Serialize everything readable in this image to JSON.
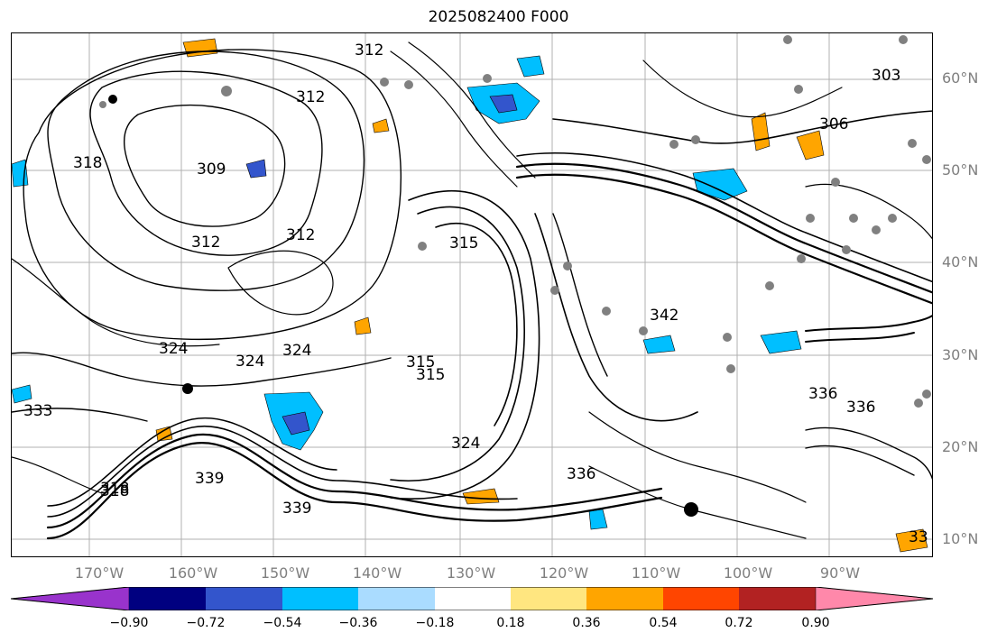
{
  "title": "2025082400 F000",
  "latitude_labels": [
    "60°N",
    "50°N",
    "40°N",
    "30°N",
    "20°N",
    "10°N"
  ],
  "longitude_labels": [
    "170°W",
    "160°W",
    "150°W",
    "140°W",
    "130°W",
    "120°W",
    "110°W",
    "100°W",
    "90°W"
  ],
  "colorbar": {
    "colors": [
      "#9933cc",
      "#000080",
      "#3355cc",
      "#00bfff",
      "#aadcff",
      "#ffffff",
      "#ffe680",
      "#ffa500",
      "#ff4500",
      "#b22222",
      "#ff88aa"
    ],
    "tick_labels": [
      "−0.90",
      "−0.72",
      "−0.54",
      "−0.36",
      "−0.18",
      "0.18",
      "0.36",
      "0.54",
      "0.72",
      "0.90"
    ]
  },
  "contour_labels": [
    {
      "text": "318"
    },
    {
      "text": "318"
    },
    {
      "text": "312"
    },
    {
      "text": "312"
    },
    {
      "text": "312"
    },
    {
      "text": "324"
    },
    {
      "text": "324"
    },
    {
      "text": "324"
    },
    {
      "text": "315"
    },
    {
      "text": "315"
    },
    {
      "text": "315"
    },
    {
      "text": "324"
    },
    {
      "text": "333"
    },
    {
      "text": "339"
    },
    {
      "text": "318"
    },
    {
      "text": "339"
    },
    {
      "text": "336"
    },
    {
      "text": "342"
    },
    {
      "text": "336"
    },
    {
      "text": "336"
    },
    {
      "text": "303"
    },
    {
      "text": "306"
    },
    {
      "text": "33"
    },
    {
      "text": "312"
    },
    {
      "text": "309"
    }
  ],
  "colors": {
    "contour": "#000000",
    "station_marker": "#808080",
    "grid": "#b0b0b0",
    "axis_label": "#7f7f7f"
  }
}
